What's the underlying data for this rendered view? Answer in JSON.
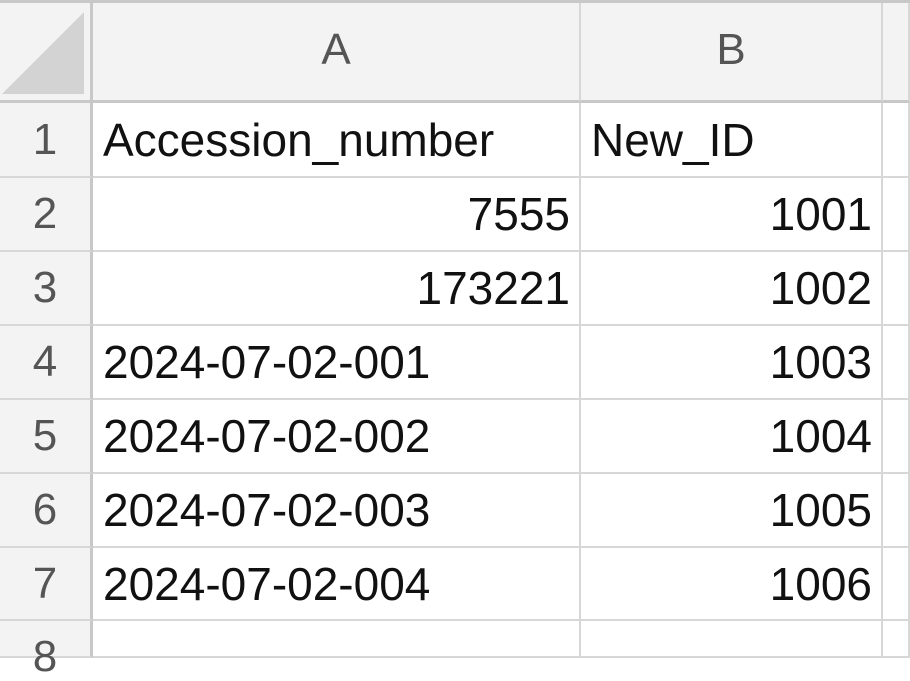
{
  "columns": [
    "A",
    "B"
  ],
  "row_numbers": [
    "1",
    "2",
    "3",
    "4",
    "5",
    "6",
    "7",
    "8"
  ],
  "rows": [
    {
      "a": "Accession_number",
      "b": "New_ID"
    },
    {
      "a": "7555",
      "b": "1001"
    },
    {
      "a": "173221",
      "b": "1002"
    },
    {
      "a": "2024-07-02-001",
      "b": "1003"
    },
    {
      "a": "2024-07-02-002",
      "b": "1004"
    },
    {
      "a": "2024-07-02-003",
      "b": "1005"
    },
    {
      "a": "2024-07-02-004",
      "b": "1006"
    },
    {
      "a": "",
      "b": ""
    }
  ],
  "colors": {
    "header_bg": "#f3f3f3",
    "gridline": "#d7d7d7",
    "header_border": "#c8c8c8"
  }
}
